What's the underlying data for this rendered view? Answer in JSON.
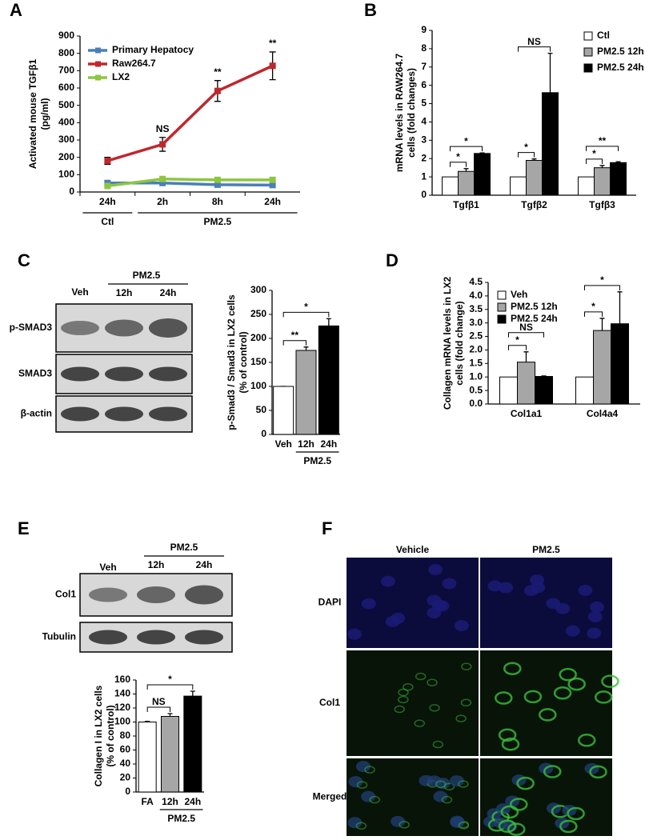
{
  "panel_labels": [
    "A",
    "B",
    "C",
    "D",
    "E",
    "F"
  ],
  "blot_C": {
    "header": "PM2.5",
    "lanes": [
      "Veh",
      "12h",
      "24h"
    ],
    "rows": [
      "p-SMAD3",
      "SMAD3",
      "β-actin"
    ]
  },
  "blot_E": {
    "header": "PM2.5",
    "lanes": [
      "Veh",
      "12h",
      "24h"
    ],
    "rows": [
      "Col1",
      "Tubulin"
    ]
  },
  "images_F": {
    "columns": [
      "Vehicle",
      "PM2.5"
    ],
    "rows": [
      "DAPI",
      "Col1",
      "Merged"
    ]
  },
  "chart_data": [
    {
      "type": "line",
      "ylabel": [
        "Activated mouse TGFβ1",
        "(pg/ml)"
      ],
      "categories": [
        "24h",
        "2h",
        "8h",
        "24h"
      ],
      "groups": [
        {
          "label": "Ctl",
          "start": 0,
          "end": 0
        },
        {
          "label": "PM2.5",
          "start": 1,
          "end": 3
        }
      ],
      "series": [
        {
          "name": "Primary Hepatocy",
          "color": "#4a7ebb",
          "values": [
            52,
            52,
            42,
            40
          ]
        },
        {
          "name": "Raw264.7",
          "color": "#c0272d",
          "values": [
            180,
            275,
            583,
            728
          ],
          "errors": [
            20,
            40,
            60,
            80
          ],
          "annotations": [
            null,
            "NS",
            "**",
            "**"
          ]
        },
        {
          "name": "LX2",
          "color": "#8dc63f",
          "values": [
            35,
            75,
            70,
            70
          ]
        }
      ],
      "ylim": [
        0,
        900
      ],
      "yticks": [
        0,
        100,
        200,
        300,
        400,
        500,
        600,
        700,
        800,
        900
      ]
    },
    {
      "type": "bar",
      "ylabel": [
        "mRNA levels in RAW264.7",
        "cells (fold changes)"
      ],
      "categories": [
        "Tgfβ1",
        "Tgfβ2",
        "Tgfβ3"
      ],
      "series": [
        {
          "name": "Ctl",
          "color": "#ffffff",
          "values": [
            1,
            1,
            1
          ]
        },
        {
          "name": "PM2.5  12h",
          "color": "#a6a6a6",
          "values": [
            1.3,
            1.9,
            1.5
          ],
          "errors": [
            0.15,
            0.08,
            0.12
          ],
          "significance": [
            "*",
            "*",
            "*"
          ]
        },
        {
          "name": "PM2.5  24h",
          "color": "#000000",
          "values": [
            2.28,
            5.6,
            1.78
          ],
          "errors": [
            0.03,
            2.15,
            0.05
          ],
          "significance": [
            "*",
            "NS",
            "**"
          ]
        }
      ],
      "ylim": [
        0,
        9
      ],
      "yticks": [
        0,
        1,
        2,
        3,
        4,
        5,
        6,
        7,
        8,
        9
      ]
    },
    {
      "type": "bar",
      "ylabel": [
        "p-Smad3 / Smad3 in LX2 cells",
        "(% of control)"
      ],
      "categories": [
        "Veh",
        "12h",
        "24h"
      ],
      "groups": [
        {
          "label": "PM2.5",
          "start": 1,
          "end": 2
        }
      ],
      "series": [
        {
          "colors": [
            "#ffffff",
            "#a6a6a6",
            "#000000"
          ],
          "values": [
            100,
            175,
            226
          ],
          "errors": [
            0,
            7,
            15
          ],
          "significance": [
            null,
            "**",
            "*"
          ]
        }
      ],
      "ylim": [
        0,
        300
      ],
      "yticks": [
        0,
        50,
        100,
        150,
        200,
        250,
        300
      ]
    },
    {
      "type": "bar",
      "ylabel": [
        "Collagen mRNA levels in LX2",
        "cells (fold change)"
      ],
      "categories": [
        "Col1a1",
        "Col4a4"
      ],
      "series": [
        {
          "name": "Veh",
          "color": "#ffffff",
          "values": [
            1,
            1
          ]
        },
        {
          "name": "PM2.5 12h",
          "color": "#a6a6a6",
          "values": [
            1.55,
            2.72
          ],
          "errors": [
            0.38,
            0.45
          ],
          "significance": [
            "*",
            "*"
          ]
        },
        {
          "name": "PM2.5 24h",
          "color": "#000000",
          "values": [
            1.02,
            2.97
          ],
          "errors": [
            0.02,
            1.18
          ],
          "significance": [
            "NS",
            "*"
          ]
        }
      ],
      "ylim": [
        0,
        4.5
      ],
      "yticks": [
        {
          "value": 0,
          "label": "0.0"
        },
        {
          "value": 0.5,
          "label": "0.5"
        },
        {
          "value": 1,
          "label": "1.0"
        },
        {
          "value": 1.5,
          "label": "1.5"
        },
        {
          "value": 2,
          "label": "2.0"
        },
        {
          "value": 2.5,
          "label": "2.5"
        },
        {
          "value": 3,
          "label": "3.0"
        },
        {
          "value": 3.5,
          "label": "3.5"
        },
        {
          "value": 4,
          "label": "4.0"
        },
        {
          "value": 4.5,
          "label": "4.5"
        }
      ]
    },
    {
      "type": "bar",
      "ylabel": [
        "Collagen I in LX2 cells",
        "(% of control)"
      ],
      "categories": [
        "FA",
        "12h",
        "24h"
      ],
      "groups": [
        {
          "label": "PM2.5",
          "start": 1,
          "end": 2
        }
      ],
      "series": [
        {
          "colors": [
            "#ffffff",
            "#a6a6a6",
            "#000000"
          ],
          "values": [
            100,
            108,
            137
          ],
          "errors": [
            1,
            4,
            7
          ],
          "significance": [
            null,
            "NS",
            "*"
          ]
        }
      ],
      "ylim": [
        0,
        160
      ],
      "yticks": [
        0,
        20,
        40,
        60,
        80,
        100,
        120,
        140,
        160
      ]
    }
  ]
}
